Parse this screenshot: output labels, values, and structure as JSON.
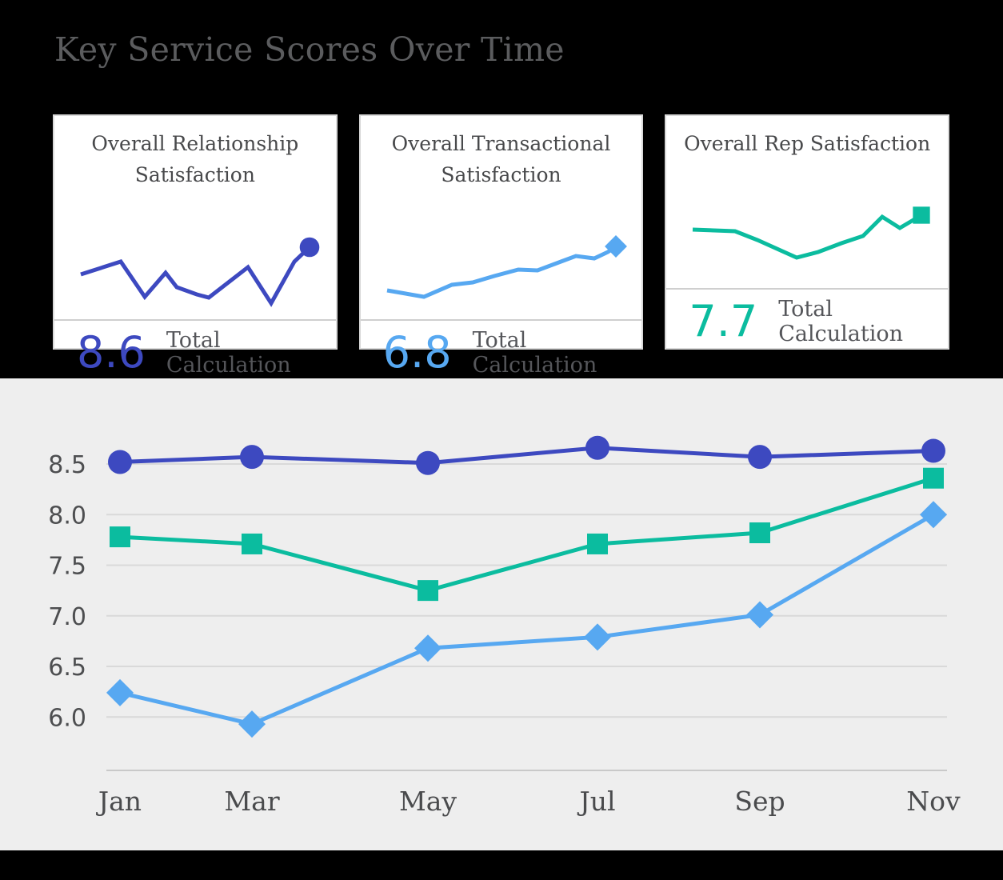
{
  "page": {
    "title": "Key Service Scores Over Time"
  },
  "colors": {
    "background": "#000000",
    "chart_section_bg": "#EEEEEE",
    "card_bg": "#FFFFFF",
    "card_border": "#D8D8D8",
    "title_text": "#5B5C5E",
    "grid_line": "#D9D9D9",
    "axis_line": "#C9C9C9",
    "series_relationship": "#3D49C0",
    "series_transactional": "#57A8F1",
    "series_rep": "#0BBC9F"
  },
  "cards": [
    {
      "title": "Overall Relationship Satisfaction",
      "value": "8.6",
      "value_label": "Total Calculation",
      "color": "#3D49C0",
      "marker": "circle",
      "sparkline_points": [
        [
          27,
          104
        ],
        [
          77,
          88
        ],
        [
          107,
          132
        ],
        [
          133,
          102
        ],
        [
          147,
          120
        ],
        [
          172,
          129
        ],
        [
          187,
          133
        ],
        [
          236,
          95
        ],
        [
          265,
          140
        ],
        [
          294,
          88
        ],
        [
          313,
          70
        ]
      ]
    },
    {
      "title": "Overall Transactional Satisfaction",
      "value": "6.8",
      "value_label": "Total Calculation",
      "color": "#57A8F1",
      "marker": "diamond",
      "sparkline_points": [
        [
          27,
          124
        ],
        [
          73,
          132
        ],
        [
          108,
          117
        ],
        [
          134,
          114
        ],
        [
          161,
          106
        ],
        [
          191,
          98
        ],
        [
          215,
          99
        ],
        [
          247,
          87
        ],
        [
          263,
          81
        ],
        [
          286,
          84
        ],
        [
          303,
          76
        ],
        [
          313,
          69
        ]
      ]
    },
    {
      "title": "Overall Rep Satisfaction",
      "value": "7.7",
      "value_label": "Total Calculation",
      "color": "#0BBC9F",
      "marker": "square",
      "sparkline_points": [
        [
          27,
          87
        ],
        [
          80,
          89
        ],
        [
          108,
          100
        ],
        [
          157,
          122
        ],
        [
          184,
          115
        ],
        [
          213,
          104
        ],
        [
          240,
          95
        ],
        [
          264,
          71
        ],
        [
          286,
          85
        ],
        [
          313,
          69
        ]
      ]
    }
  ],
  "chart_data": {
    "type": "line",
    "title": "Key Service Scores Over Time",
    "categories": [
      "Jan",
      "Mar",
      "May",
      "Jul",
      "Sep",
      "Nov"
    ],
    "yticks": [
      "8.5",
      "8.0",
      "7.5",
      "7.0",
      "6.5",
      "6.0"
    ],
    "ylim": [
      5.5,
      8.85
    ],
    "grid": true,
    "legend": "none",
    "series": [
      {
        "name": "Overall Relationship Satisfaction",
        "marker": "circle",
        "color": "#3D49C0",
        "values": [
          8.52,
          8.57,
          8.51,
          8.66,
          8.57,
          8.63
        ]
      },
      {
        "name": "Overall Rep Satisfaction",
        "marker": "square",
        "color": "#0BBC9F",
        "values": [
          7.78,
          7.71,
          7.25,
          7.71,
          7.82,
          8.36
        ]
      },
      {
        "name": "Overall Transactional Satisfaction",
        "marker": "diamond",
        "color": "#57A8F1",
        "values": [
          6.24,
          5.93,
          6.68,
          6.79,
          7.01,
          8.0
        ]
      }
    ]
  }
}
